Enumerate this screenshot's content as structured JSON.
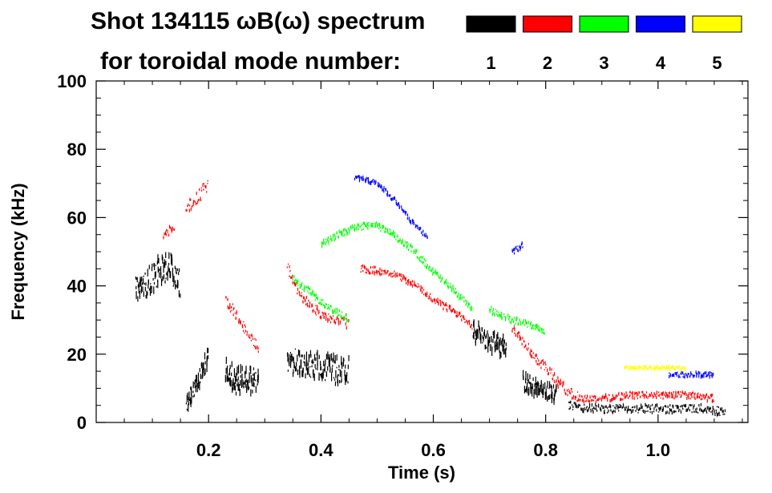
{
  "chart_data": {
    "type": "scatter",
    "title_line1": "Shot 134115 ωB(ω) spectrum",
    "title_line2": "for toroidal mode number:",
    "xlabel": "Time (s)",
    "ylabel": "Frequency (kHz)",
    "xlim": [
      0.0,
      1.16
    ],
    "ylim": [
      0,
      100
    ],
    "x_ticks": [
      0.2,
      0.4,
      0.6,
      0.8,
      1.0
    ],
    "x_tick_labels": [
      "0.2",
      "0.4",
      "0.6",
      "0.8",
      "1.0"
    ],
    "y_ticks": [
      0,
      20,
      40,
      60,
      80,
      100
    ],
    "y_tick_labels": [
      "0",
      "20",
      "40",
      "60",
      "80",
      "100"
    ],
    "legend": [
      {
        "label": "1",
        "color": "#000000"
      },
      {
        "label": "2",
        "color": "#ff0000"
      },
      {
        "label": "3",
        "color": "#00ff00"
      },
      {
        "label": "4",
        "color": "#0000ff"
      },
      {
        "label": "5",
        "color": "#ffff00"
      }
    ],
    "series": [
      {
        "name": "n=1",
        "color": "#000000",
        "segments": [
          {
            "x": [
              0.07,
              0.09,
              0.11,
              0.13,
              0.15
            ],
            "y": [
              39,
              41,
              44,
              46,
              40
            ],
            "spread": 8
          },
          {
            "x": [
              0.16,
              0.18,
              0.2
            ],
            "y": [
              6,
              12,
              20
            ],
            "spread": 5
          },
          {
            "x": [
              0.23,
              0.25,
              0.27,
              0.29
            ],
            "y": [
              15,
              12,
              12,
              12
            ],
            "spread": 8
          },
          {
            "x": [
              0.34,
              0.37,
              0.4,
              0.43,
              0.45
            ],
            "y": [
              18,
              17,
              16,
              15,
              15
            ],
            "spread": 8
          },
          {
            "x": [
              0.67,
              0.69,
              0.71,
              0.73
            ],
            "y": [
              27,
              25,
              23,
              22
            ],
            "spread": 6
          },
          {
            "x": [
              0.76,
              0.78,
              0.8,
              0.82
            ],
            "y": [
              12,
              10,
              9,
              8
            ],
            "spread": 5
          },
          {
            "x": [
              0.84,
              0.88,
              0.92,
              0.96,
              1.0,
              1.04,
              1.08,
              1.12
            ],
            "y": [
              5,
              4,
              4,
              4,
              4,
              4,
              4,
              3
            ],
            "spread": 2.5
          }
        ]
      },
      {
        "name": "n=2",
        "color": "#ff0000",
        "segments": [
          {
            "x": [
              0.12,
              0.14
            ],
            "y": [
              55,
              58
            ],
            "spread": 3
          },
          {
            "x": [
              0.16,
              0.18,
              0.2
            ],
            "y": [
              62,
              66,
              70
            ],
            "spread": 4
          },
          {
            "x": [
              0.23,
              0.25,
              0.27,
              0.29
            ],
            "y": [
              36,
              31,
              26,
              21
            ],
            "spread": 3
          },
          {
            "x": [
              0.34,
              0.36,
              0.38,
              0.4,
              0.42,
              0.45
            ],
            "y": [
              45,
              38,
              34,
              32,
              30,
              29
            ],
            "spread": 3
          },
          {
            "x": [
              0.47,
              0.52,
              0.56,
              0.6,
              0.64,
              0.67
            ],
            "y": [
              45,
              44,
              41,
              36,
              32,
              28
            ],
            "spread": 2
          },
          {
            "x": [
              0.74,
              0.76,
              0.78,
              0.8,
              0.82,
              0.84,
              0.86
            ],
            "y": [
              28,
              24,
              19,
              16,
              12,
              9,
              7
            ],
            "spread": 3
          },
          {
            "x": [
              0.86,
              0.9,
              0.95,
              1.0,
              1.05,
              1.1
            ],
            "y": [
              7,
              7,
              8,
              8,
              8,
              7
            ],
            "spread": 2
          }
        ]
      },
      {
        "name": "n=3",
        "color": "#00ff00",
        "segments": [
          {
            "x": [
              0.4,
              0.43,
              0.46,
              0.49,
              0.52,
              0.56,
              0.6,
              0.64,
              0.67
            ],
            "y": [
              52,
              55,
              57,
              58,
              56,
              51,
              44,
              38,
              33
            ],
            "spread": 2
          },
          {
            "x": [
              0.35,
              0.38,
              0.41,
              0.45
            ],
            "y": [
              42,
              38,
              34,
              30
            ],
            "spread": 2
          },
          {
            "x": [
              0.7,
              0.74,
              0.78,
              0.8
            ],
            "y": [
              33,
              30,
              28,
              26
            ],
            "spread": 2
          }
        ]
      },
      {
        "name": "n=4",
        "color": "#0000ff",
        "segments": [
          {
            "x": [
              0.46,
              0.5,
              0.53,
              0.56,
              0.59
            ],
            "y": [
              72,
              70,
              65,
              59,
              54
            ],
            "spread": 1.5
          },
          {
            "x": [
              0.74,
              0.76
            ],
            "y": [
              50,
              52
            ],
            "spread": 2
          },
          {
            "x": [
              1.02,
              1.06,
              1.1
            ],
            "y": [
              14,
              14,
              14
            ],
            "spread": 1.5
          }
        ]
      },
      {
        "name": "n=5",
        "color": "#ffff00",
        "segments": [
          {
            "x": [
              0.94,
              0.98,
              1.02,
              1.05
            ],
            "y": [
              16,
              16,
              16,
              16
            ],
            "spread": 1
          }
        ]
      }
    ]
  }
}
